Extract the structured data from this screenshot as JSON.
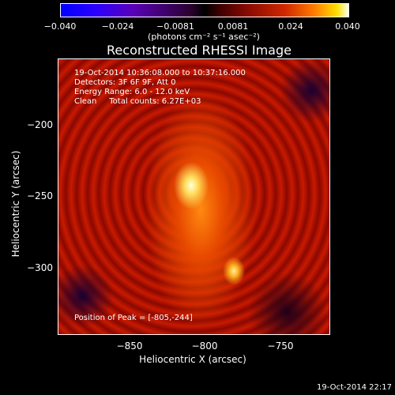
{
  "colorbar": {
    "ticks": [
      "−0.040",
      "−0.024",
      "−0.0081",
      "0.0081",
      "0.024",
      "0.040"
    ],
    "unit": "(photons cm⁻² s⁻¹ asec⁻²)"
  },
  "title": "Reconstructed RHESSI Image",
  "info": {
    "line1": "19-Oct-2014 10:36:08.000 to 10:37:16.000",
    "line2": "Detectors: 3F 6F 9F, Att 0",
    "line3": "Energy Range: 6.0 - 12.0 keV",
    "line4": "Clean     Total counts: 6.27E+03",
    "peak": "Position of Peak = [-805,-244]"
  },
  "axes": {
    "xlabel": "Heliocentric X (arcsec)",
    "ylabel": "Heliocentric Y (arcsec)",
    "xticks": [
      "−850",
      "−800",
      "−750"
    ],
    "yticks": [
      "−200",
      "−250",
      "−300"
    ]
  },
  "timestamp": "19-Oct-2014 22:17"
}
